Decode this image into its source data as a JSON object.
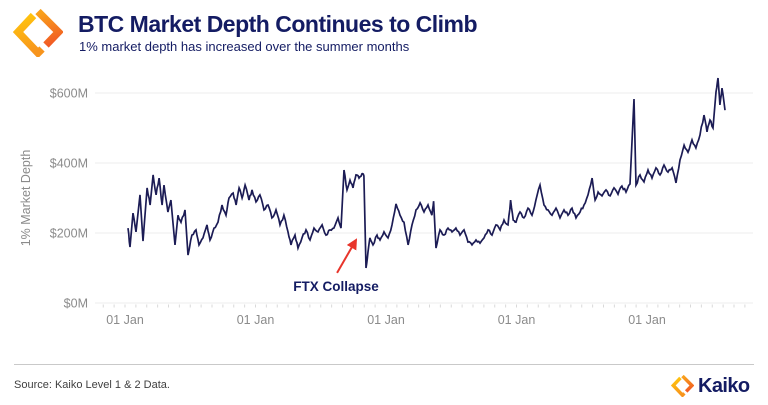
{
  "header": {
    "title": "BTC Market Depth Continues to Climb",
    "subtitle": "1% market depth has increased over the summer months"
  },
  "footer": {
    "source": "Source: Kaiko Level 1 & 2 Data.",
    "brand": "Kaiko"
  },
  "colors": {
    "navy": "#141c63",
    "line": "#1c1c55",
    "gray": "#8b8b8b",
    "grid": "#ececec",
    "month_tick": "#d9d9d9",
    "red": "#e8352b",
    "source_text": "#3f3f3f",
    "divider": "#c9c9c9",
    "logo_yellow": "#ffc20e",
    "logo_orange": "#f7941d",
    "logo_deep_orange": "#f15a24"
  },
  "chart_data": {
    "type": "line",
    "ylabel": "1% Market Depth",
    "xlabel": "",
    "grid": "horizontal",
    "legend": "none",
    "ylim": [
      0,
      660
    ],
    "xlim_years": [
      2020.77,
      2025.83
    ],
    "y_ticks": [
      {
        "value": 0,
        "label": "$0M"
      },
      {
        "value": 200,
        "label": "$200M"
      },
      {
        "value": 400,
        "label": "$400M"
      },
      {
        "value": 600,
        "label": "$600M"
      }
    ],
    "x_ticks": [
      {
        "year": 2021,
        "label": "01 Jan"
      },
      {
        "year": 2022,
        "label": "01 Jan"
      },
      {
        "year": 2023,
        "label": "01 Jan"
      },
      {
        "year": 2024,
        "label": "01 Jan"
      },
      {
        "year": 2025,
        "label": "01 Jan"
      }
    ],
    "annotation": {
      "text": "FTX Collapse",
      "label_year": 2022.617,
      "label_value": 34,
      "arrow_from": {
        "year": 2022.625,
        "value": 86
      },
      "arrow_to": {
        "year": 2022.77,
        "value": 180
      }
    },
    "series": [
      {
        "name": "BTC 1% market depth ($M)",
        "color": "#1c1c55",
        "points": [
          [
            2021.023,
            214
          ],
          [
            2021.038,
            160
          ],
          [
            2021.061,
            257
          ],
          [
            2021.084,
            203
          ],
          [
            2021.115,
            309
          ],
          [
            2021.138,
            177
          ],
          [
            2021.169,
            329
          ],
          [
            2021.192,
            280
          ],
          [
            2021.215,
            366
          ],
          [
            2021.238,
            309
          ],
          [
            2021.261,
            357
          ],
          [
            2021.284,
            280
          ],
          [
            2021.299,
            337
          ],
          [
            2021.329,
            260
          ],
          [
            2021.352,
            294
          ],
          [
            2021.383,
            166
          ],
          [
            2021.406,
            251
          ],
          [
            2021.429,
            231
          ],
          [
            2021.46,
            266
          ],
          [
            2021.483,
            137
          ],
          [
            2021.513,
            194
          ],
          [
            2021.544,
            209
          ],
          [
            2021.567,
            166
          ],
          [
            2021.598,
            186
          ],
          [
            2021.628,
            223
          ],
          [
            2021.651,
            180
          ],
          [
            2021.682,
            214
          ],
          [
            2021.713,
            231
          ],
          [
            2021.743,
            280
          ],
          [
            2021.774,
            251
          ],
          [
            2021.797,
            300
          ],
          [
            2021.828,
            314
          ],
          [
            2021.851,
            280
          ],
          [
            2021.874,
            329
          ],
          [
            2021.897,
            300
          ],
          [
            2021.92,
            337
          ],
          [
            2021.95,
            294
          ],
          [
            2021.973,
            323
          ],
          [
            2022.004,
            289
          ],
          [
            2022.034,
            309
          ],
          [
            2022.065,
            266
          ],
          [
            2022.096,
            280
          ],
          [
            2022.126,
            243
          ],
          [
            2022.157,
            266
          ],
          [
            2022.188,
            223
          ],
          [
            2022.218,
            251
          ],
          [
            2022.249,
            203
          ],
          [
            2022.272,
            166
          ],
          [
            2022.303,
            194
          ],
          [
            2022.326,
            157
          ],
          [
            2022.356,
            186
          ],
          [
            2022.387,
            209
          ],
          [
            2022.418,
            180
          ],
          [
            2022.448,
            214
          ],
          [
            2022.479,
            203
          ],
          [
            2022.51,
            223
          ],
          [
            2022.54,
            194
          ],
          [
            2022.571,
            209
          ],
          [
            2022.601,
            214
          ],
          [
            2022.632,
            243
          ],
          [
            2022.655,
            214
          ],
          [
            2022.678,
            380
          ],
          [
            2022.701,
            323
          ],
          [
            2022.724,
            351
          ],
          [
            2022.747,
            329
          ],
          [
            2022.77,
            366
          ],
          [
            2022.793,
            357
          ],
          [
            2022.816,
            369
          ],
          [
            2022.831,
            363
          ],
          [
            2022.847,
            100
          ],
          [
            2022.862,
            146
          ],
          [
            2022.877,
            186
          ],
          [
            2022.9,
            166
          ],
          [
            2022.931,
            194
          ],
          [
            2022.954,
            180
          ],
          [
            2022.985,
            203
          ],
          [
            2023.015,
            186
          ],
          [
            2023.046,
            223
          ],
          [
            2023.077,
            283
          ],
          [
            2023.107,
            251
          ],
          [
            2023.138,
            231
          ],
          [
            2023.169,
            166
          ],
          [
            2023.199,
            223
          ],
          [
            2023.23,
            266
          ],
          [
            2023.261,
            286
          ],
          [
            2023.291,
            260
          ],
          [
            2023.322,
            280
          ],
          [
            2023.352,
            251
          ],
          [
            2023.365,
            291
          ],
          [
            2023.383,
            157
          ],
          [
            2023.414,
            209
          ],
          [
            2023.444,
            194
          ],
          [
            2023.475,
            214
          ],
          [
            2023.506,
            203
          ],
          [
            2023.536,
            214
          ],
          [
            2023.567,
            194
          ],
          [
            2023.598,
            209
          ],
          [
            2023.628,
            174
          ],
          [
            2023.659,
            166
          ],
          [
            2023.69,
            180
          ],
          [
            2023.72,
            171
          ],
          [
            2023.751,
            186
          ],
          [
            2023.782,
            209
          ],
          [
            2023.812,
            194
          ],
          [
            2023.843,
            223
          ],
          [
            2023.874,
            209
          ],
          [
            2023.904,
            237
          ],
          [
            2023.935,
            223
          ],
          [
            2023.955,
            294
          ],
          [
            2023.975,
            237
          ],
          [
            2023.996,
            231
          ],
          [
            2024.027,
            260
          ],
          [
            2024.057,
            243
          ],
          [
            2024.088,
            271
          ],
          [
            2024.119,
            251
          ],
          [
            2024.149,
            294
          ],
          [
            2024.18,
            337
          ],
          [
            2024.211,
            280
          ],
          [
            2024.241,
            266
          ],
          [
            2024.272,
            251
          ],
          [
            2024.303,
            271
          ],
          [
            2024.333,
            243
          ],
          [
            2024.364,
            266
          ],
          [
            2024.395,
            251
          ],
          [
            2024.425,
            271
          ],
          [
            2024.456,
            243
          ],
          [
            2024.487,
            260
          ],
          [
            2024.517,
            280
          ],
          [
            2024.548,
            309
          ],
          [
            2024.579,
            357
          ],
          [
            2024.602,
            294
          ],
          [
            2024.625,
            317
          ],
          [
            2024.655,
            306
          ],
          [
            2024.686,
            323
          ],
          [
            2024.717,
            306
          ],
          [
            2024.747,
            329
          ],
          [
            2024.778,
            311
          ],
          [
            2024.808,
            334
          ],
          [
            2024.839,
            317
          ],
          [
            2024.87,
            340
          ],
          [
            2024.9,
            583
          ],
          [
            2024.916,
            337
          ],
          [
            2024.946,
            366
          ],
          [
            2024.977,
            346
          ],
          [
            2025.008,
            380
          ],
          [
            2025.038,
            357
          ],
          [
            2025.069,
            386
          ],
          [
            2025.1,
            366
          ],
          [
            2025.13,
            394
          ],
          [
            2025.161,
            374
          ],
          [
            2025.192,
            386
          ],
          [
            2025.222,
            343
          ],
          [
            2025.253,
            409
          ],
          [
            2025.284,
            451
          ],
          [
            2025.314,
            431
          ],
          [
            2025.345,
            466
          ],
          [
            2025.375,
            443
          ],
          [
            2025.406,
            480
          ],
          [
            2025.437,
            537
          ],
          [
            2025.46,
            489
          ],
          [
            2025.483,
            523
          ],
          [
            2025.506,
            500
          ],
          [
            2025.529,
            603
          ],
          [
            2025.544,
            643
          ],
          [
            2025.559,
            566
          ],
          [
            2025.575,
            614
          ],
          [
            2025.598,
            551
          ]
        ]
      }
    ]
  }
}
